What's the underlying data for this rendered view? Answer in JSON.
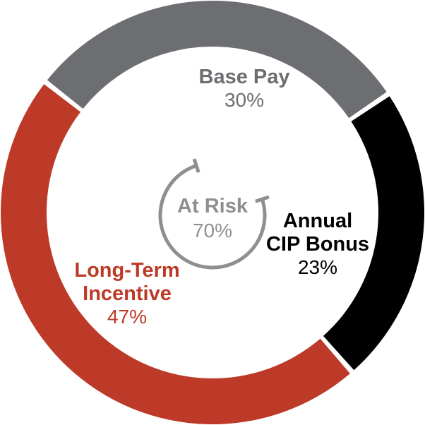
{
  "chart_data": {
    "type": "pie",
    "style": "donut",
    "slices": [
      {
        "label": "Base Pay",
        "label_lines": [
          "Base Pay"
        ],
        "value": 30,
        "value_label": "30%",
        "color": "#6d6e71",
        "label_color": "#6d6e71"
      },
      {
        "label": "Annual CIP Bonus",
        "label_lines": [
          "Annual",
          "CIP Bonus"
        ],
        "value": 23,
        "value_label": "23%",
        "color": "#000000",
        "label_color": "#000000"
      },
      {
        "label": "Long-Term Incentive",
        "label_lines": [
          "Long-Term",
          "Incentive"
        ],
        "value": 47,
        "value_label": "47%",
        "color": "#bc3a27",
        "label_color": "#bc3a27"
      }
    ],
    "center_annotation": {
      "label": "At Risk",
      "value": 70,
      "value_label": "70%",
      "color": "#8e8f92",
      "spans": [
        "Annual CIP Bonus",
        "Long-Term Incentive"
      ]
    },
    "legend": "none"
  }
}
